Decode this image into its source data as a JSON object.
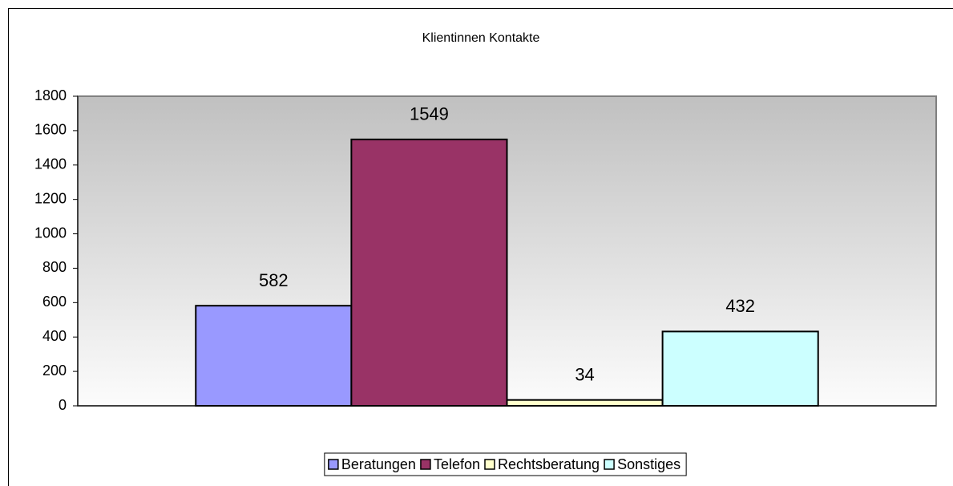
{
  "chart_data": {
    "type": "bar",
    "title": "Klientinnen Kontakte",
    "categories": [
      null
    ],
    "series": [
      {
        "name": "Beratungen",
        "color": "#9999ff",
        "values": [
          582
        ]
      },
      {
        "name": "Telefon",
        "color": "#993366",
        "values": [
          1549
        ]
      },
      {
        "name": "Rechtsberatung",
        "color": "#ffffcc",
        "values": [
          34
        ]
      },
      {
        "name": "Sonstiges",
        "color": "#ccffff",
        "values": [
          432
        ]
      }
    ],
    "ylim": [
      0,
      1800
    ],
    "yticks": [
      0,
      200,
      400,
      600,
      800,
      1000,
      1200,
      1400,
      1600,
      1800
    ],
    "legend": "bottom"
  }
}
